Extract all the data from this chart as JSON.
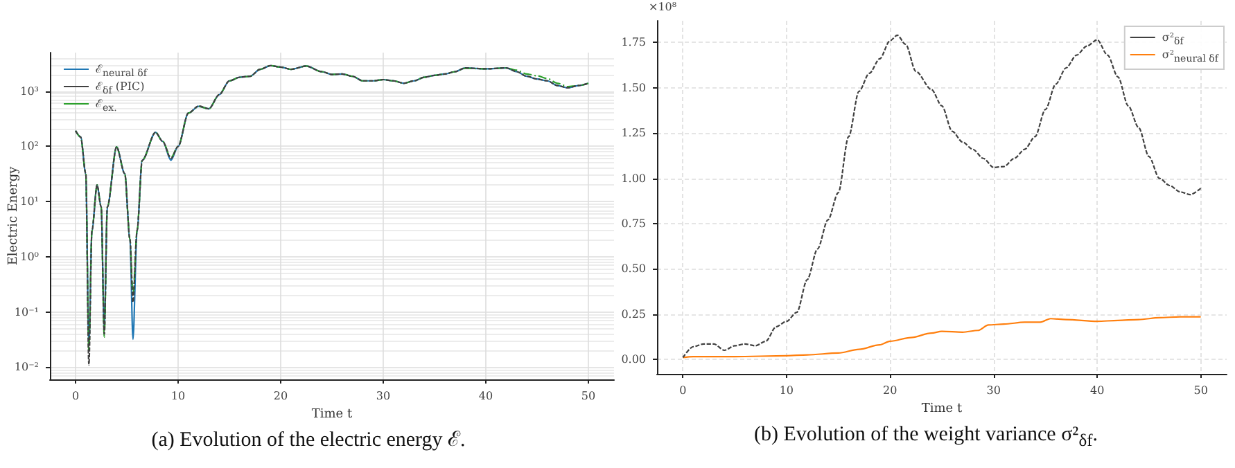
{
  "chart_data": [
    {
      "type": "line",
      "title": "(a) Evolution of the electric energy ℰ.",
      "xlabel": "Time t",
      "ylabel": "Electric Energy",
      "log": true,
      "grid": true,
      "legend": "top left",
      "marker": "none",
      "xlim": [
        -2.5,
        52.5
      ],
      "xticks": [
        0,
        10,
        20,
        30,
        40,
        50
      ],
      "ylim": [
        0.006,
        5000
      ],
      "yticks": [
        {
          "value": 0.01,
          "label": "10⁻²"
        },
        {
          "value": 0.1,
          "label": "10⁻¹"
        },
        {
          "value": 1,
          "label": "10⁰"
        },
        {
          "value": 10,
          "label": "10¹"
        },
        {
          "value": 100,
          "label": "10²"
        },
        {
          "value": 1000,
          "label": "10³"
        }
      ],
      "x": [
        0,
        0.5,
        1,
        1.3,
        1.6,
        2.1,
        2.5,
        2.8,
        3.1,
        4,
        4.8,
        5.3,
        5.6,
        6,
        6.5,
        7.8,
        8.5,
        9.3,
        10,
        11,
        12,
        13,
        14,
        15,
        16,
        17,
        18,
        19,
        20,
        21,
        22.5,
        24,
        25,
        26,
        27,
        28,
        29,
        30,
        31,
        32,
        33,
        34,
        35,
        36,
        37,
        38,
        40,
        42,
        43,
        44,
        45,
        46,
        47,
        48,
        49,
        50
      ],
      "series": [
        {
          "name": "ℰ$_{neural δf}$",
          "color": "#1f77b4",
          "line_style": "solid",
          "values": [
            192,
            148,
            32,
            0.025,
            3,
            20,
            8,
            0.05,
            8,
            98,
            32,
            2.1,
            0.032,
            3,
            56,
            180,
            123,
            56,
            100,
            400,
            530,
            480,
            860,
            1540,
            1790,
            1860,
            2490,
            2900,
            2740,
            2490,
            2850,
            2260,
            2010,
            2050,
            1860,
            1540,
            1540,
            1620,
            1540,
            1390,
            1540,
            1790,
            1930,
            2050,
            2260,
            2640,
            2540,
            2640,
            2260,
            1860,
            1660,
            1540,
            1260,
            1150,
            1260,
            1390
          ]
        },
        {
          "name": "ℰ$_{δf}$ (PIC)",
          "color": "#404040",
          "line_style": "dashed",
          "values": [
            192,
            148,
            32,
            0.011,
            3,
            20,
            8,
            0.04,
            8,
            98,
            32,
            2.1,
            0.15,
            3,
            56,
            180,
            123,
            60,
            100,
            400,
            540,
            480,
            860,
            1540,
            1790,
            1860,
            2490,
            2900,
            2740,
            2490,
            2850,
            2260,
            2010,
            2050,
            1860,
            1540,
            1540,
            1620,
            1540,
            1390,
            1540,
            1790,
            1930,
            2050,
            2260,
            2640,
            2540,
            2640,
            2260,
            1860,
            1660,
            1540,
            1260,
            1150,
            1260,
            1390
          ]
        },
        {
          "name": "ℰ$_{ex.}$",
          "color": "#2ca02c",
          "line_style": "dashdot",
          "values": [
            192,
            148,
            32,
            0.02,
            3,
            20,
            8,
            0.035,
            8,
            98,
            32,
            2.1,
            0.2,
            3,
            56,
            180,
            123,
            62,
            100,
            400,
            530,
            480,
            860,
            1540,
            1790,
            1860,
            2490,
            2900,
            2740,
            2490,
            2850,
            2260,
            2010,
            2050,
            1860,
            1540,
            1540,
            1620,
            1540,
            1390,
            1540,
            1790,
            1930,
            2050,
            2260,
            2600,
            2540,
            2640,
            2400,
            2050,
            1900,
            1690,
            1390,
            1210,
            1260,
            1390
          ]
        }
      ]
    },
    {
      "type": "line",
      "title": "(b) Evolution of the weight variance σ²$_{δf}$.",
      "xlabel": "Time t",
      "grid": true,
      "legend": "top right",
      "marker": "none",
      "annotations": [
        "×10⁸"
      ],
      "xlim": [
        -2.5,
        52.5
      ],
      "xticks": [
        0,
        10,
        20,
        30,
        40,
        50
      ],
      "ylim": [
        -0.08,
        1.87
      ],
      "yticks": [
        {
          "value": 0,
          "label": "0.00"
        },
        {
          "value": 0.25,
          "label": "0.25"
        },
        {
          "value": 0.5,
          "label": "0.50"
        },
        {
          "value": 0.75,
          "label": "0.75"
        },
        {
          "value": 1,
          "label": "1.00"
        },
        {
          "value": 1.25,
          "label": "1.25"
        },
        {
          "value": 1.5,
          "label": "1.50"
        },
        {
          "value": 1.75,
          "label": "1.75"
        }
      ],
      "series": [
        {
          "name": "σ²$_{δf}$",
          "color": "#404040",
          "line_style": "dashed",
          "x": [
            0,
            1,
            2,
            3,
            4,
            5,
            6,
            7,
            8,
            9,
            10,
            11,
            12,
            13,
            14,
            15,
            16,
            17,
            18,
            19,
            20,
            20.7,
            21.5,
            22.5,
            24,
            25,
            26,
            27,
            28,
            29,
            30,
            31,
            32,
            33,
            34,
            35,
            36,
            37,
            38,
            39,
            40,
            41,
            42,
            43,
            44,
            45,
            46,
            47,
            48,
            49,
            50
          ],
          "values": [
            0.01,
            0.07,
            0.085,
            0.085,
            0.05,
            0.075,
            0.085,
            0.075,
            0.1,
            0.18,
            0.21,
            0.26,
            0.44,
            0.61,
            0.77,
            0.92,
            1.23,
            1.48,
            1.58,
            1.66,
            1.76,
            1.79,
            1.74,
            1.59,
            1.49,
            1.4,
            1.26,
            1.2,
            1.16,
            1.11,
            1.06,
            1.065,
            1.11,
            1.16,
            1.23,
            1.38,
            1.52,
            1.61,
            1.68,
            1.73,
            1.765,
            1.68,
            1.56,
            1.4,
            1.28,
            1.12,
            1.0,
            0.96,
            0.925,
            0.91,
            0.945
          ]
        },
        {
          "name": "σ²$_{neural δf}$",
          "color": "#ff7f0e",
          "line_style": "solid",
          "x": [
            0,
            1,
            5,
            10,
            12,
            15,
            17,
            19,
            20,
            22,
            24,
            25,
            27,
            28.5,
            29.5,
            31,
            33,
            34.5,
            35.5,
            37,
            40,
            42,
            44,
            46,
            48,
            50
          ],
          "values": [
            0.01,
            0.015,
            0.015,
            0.02,
            0.025,
            0.035,
            0.055,
            0.08,
            0.1,
            0.12,
            0.145,
            0.155,
            0.15,
            0.16,
            0.19,
            0.195,
            0.205,
            0.205,
            0.225,
            0.22,
            0.21,
            0.215,
            0.22,
            0.23,
            0.235,
            0.235
          ]
        }
      ]
    }
  ]
}
